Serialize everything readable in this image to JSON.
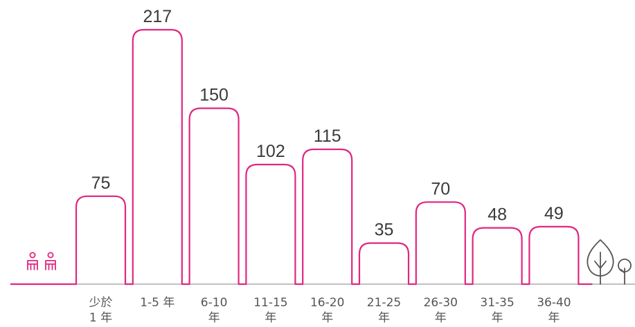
{
  "colors": {
    "accent": "#e0267f",
    "baseline": "#9a9a9a",
    "text": "#3a3a3a",
    "icons": "#555555"
  },
  "icons": {
    "left": "people-icon",
    "right": "trees-icon"
  },
  "chart_data": {
    "type": "bar",
    "title": "",
    "xlabel": "",
    "ylabel": "",
    "ylim": [
      0,
      217
    ],
    "grid": false,
    "categories": [
      [
        "少於",
        "1 年"
      ],
      [
        "1-5 年"
      ],
      [
        "6-10",
        "年"
      ],
      [
        "11-15",
        "年"
      ],
      [
        "16-20",
        "年"
      ],
      [
        "21-25",
        "年"
      ],
      [
        "26-30",
        "年"
      ],
      [
        "31-35",
        "年"
      ],
      [
        "36-40",
        "年"
      ]
    ],
    "values": [
      75,
      217,
      150,
      102,
      115,
      35,
      70,
      48,
      49
    ]
  }
}
